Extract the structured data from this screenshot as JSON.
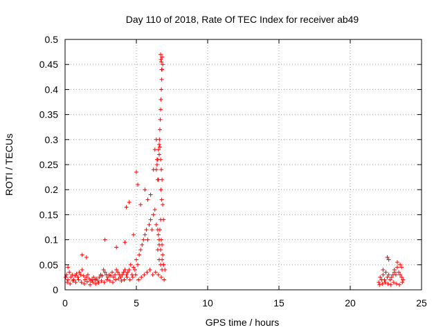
{
  "chart_data": {
    "type": "scatter",
    "title": "Day 110 of 2018, Rate Of TEC Index for receiver ab49",
    "xlabel": "GPS time / hours",
    "ylabel": "ROTI / TECUs",
    "xlim": [
      0,
      25
    ],
    "ylim": [
      0,
      0.5
    ],
    "xticks": [
      "0",
      "5",
      "10",
      "15",
      "20",
      "25"
    ],
    "yticks": [
      "0",
      "0.05",
      "0.1",
      "0.15",
      "0.2",
      "0.25",
      "0.3",
      "0.35",
      "0.4",
      "0.45",
      "0.5"
    ],
    "grid": true,
    "marker": "+",
    "color": "#ff0000",
    "series": [
      {
        "x": [
          0.05,
          0.1,
          0.2,
          0.3,
          0.4,
          0.5,
          0.6,
          0.7,
          0.8,
          0.9,
          1.0,
          1.1,
          1.2,
          1.3,
          1.4,
          1.5,
          1.6,
          1.7,
          1.8,
          1.9,
          2.0,
          2.1,
          2.2,
          2.3,
          2.4,
          2.5,
          2.6,
          2.7,
          2.8,
          2.9,
          3.0,
          3.1,
          3.2,
          3.3,
          3.4,
          3.5,
          3.6,
          3.7,
          3.8,
          3.9,
          4.0,
          4.1,
          4.2,
          4.3,
          4.4,
          4.5,
          4.6,
          4.7,
          4.8,
          4.9,
          5.0,
          5.1,
          5.2,
          5.3,
          5.4,
          5.5,
          5.6,
          5.7,
          5.8,
          5.9,
          6.0,
          6.1,
          6.2,
          6.3,
          6.4,
          6.5,
          6.6,
          6.7,
          6.8,
          6.9,
          7.0,
          0.15,
          0.35,
          0.55,
          0.75,
          0.95,
          1.15,
          1.35,
          1.55,
          1.75,
          1.95,
          2.15,
          2.35,
          2.55,
          2.75,
          2.95,
          3.15,
          3.35,
          3.55,
          3.75,
          3.95,
          4.15,
          4.35,
          4.55,
          4.75,
          4.95,
          5.15,
          5.35,
          5.55,
          5.75,
          5.95,
          6.15,
          6.35,
          6.55,
          6.75,
          6.95,
          0.2,
          1.2,
          1.5,
          2.8,
          3.6,
          4.2,
          4.3,
          4.5,
          4.8,
          5.0,
          5.1,
          5.3,
          5.6,
          5.8,
          6.0,
          6.2,
          6.3,
          6.4,
          6.45,
          6.5,
          6.55,
          6.6,
          6.65,
          6.7,
          6.72,
          6.75,
          6.78,
          6.8,
          6.85,
          6.9,
          6.5,
          6.55,
          6.6,
          6.65,
          6.7,
          6.75,
          6.8,
          6.85,
          6.9,
          6.6,
          6.7,
          6.8,
          22.0,
          22.1,
          22.2,
          22.3,
          22.4,
          22.5,
          22.6,
          22.7,
          22.8,
          22.9,
          23.0,
          23.1,
          23.2,
          23.3,
          23.4,
          23.5,
          23.6,
          23.7,
          22.05,
          22.25,
          22.45,
          22.65,
          22.85,
          23.05,
          23.25,
          23.45,
          23.65,
          22.3,
          22.6,
          22.7,
          23.1,
          23.3,
          23.5,
          23.6
        ],
        "y": [
          0.025,
          0.03,
          0.02,
          0.035,
          0.025,
          0.03,
          0.02,
          0.028,
          0.032,
          0.025,
          0.035,
          0.03,
          0.04,
          0.028,
          0.02,
          0.025,
          0.03,
          0.022,
          0.018,
          0.02,
          0.025,
          0.02,
          0.022,
          0.018,
          0.025,
          0.03,
          0.028,
          0.04,
          0.035,
          0.03,
          0.025,
          0.03,
          0.028,
          0.035,
          0.025,
          0.03,
          0.04,
          0.035,
          0.03,
          0.025,
          0.03,
          0.035,
          0.04,
          0.03,
          0.035,
          0.04,
          0.05,
          0.03,
          0.045,
          0.04,
          0.06,
          0.05,
          0.07,
          0.08,
          0.09,
          0.1,
          0.11,
          0.12,
          0.1,
          0.13,
          0.14,
          0.12,
          0.15,
          0.16,
          0.13,
          0.12,
          0.1,
          0.08,
          0.06,
          0.05,
          0.04,
          0.015,
          0.012,
          0.018,
          0.015,
          0.02,
          0.015,
          0.012,
          0.016,
          0.01,
          0.015,
          0.012,
          0.014,
          0.018,
          0.015,
          0.02,
          0.018,
          0.015,
          0.02,
          0.022,
          0.018,
          0.02,
          0.025,
          0.02,
          0.025,
          0.03,
          0.02,
          0.025,
          0.03,
          0.035,
          0.04,
          0.03,
          0.035,
          0.03,
          0.025,
          0.02,
          0.045,
          0.07,
          0.065,
          0.1,
          0.085,
          0.095,
          0.165,
          0.175,
          0.11,
          0.235,
          0.21,
          0.17,
          0.2,
          0.18,
          0.19,
          0.24,
          0.28,
          0.3,
          0.25,
          0.26,
          0.22,
          0.27,
          0.285,
          0.26,
          0.2,
          0.24,
          0.18,
          0.22,
          0.17,
          0.14,
          0.08,
          0.11,
          0.09,
          0.12,
          0.14,
          0.1,
          0.09,
          0.07,
          0.05,
          0.06,
          0.05,
          0.04,
          0.015,
          0.025,
          0.02,
          0.03,
          0.02,
          0.035,
          0.025,
          0.03,
          0.02,
          0.025,
          0.03,
          0.04,
          0.03,
          0.045,
          0.035,
          0.03,
          0.025,
          0.02,
          0.01,
          0.012,
          0.015,
          0.012,
          0.01,
          0.015,
          0.012,
          0.01,
          0.015,
          0.04,
          0.065,
          0.06,
          0.035,
          0.055,
          0.05,
          0.045
        ]
      },
      {
        "x": [
          6.4,
          6.45,
          6.5,
          6.55,
          6.6,
          6.62,
          6.65,
          6.68,
          6.7,
          6.72,
          6.75,
          6.78,
          6.8,
          6.85
        ],
        "y": [
          0.24,
          0.26,
          0.22,
          0.28,
          0.29,
          0.3,
          0.32,
          0.34,
          0.36,
          0.38,
          0.4,
          0.42,
          0.44,
          0.45
        ]
      },
      {
        "x": [
          6.7,
          6.72,
          6.75,
          6.77,
          6.8
        ],
        "y": [
          0.47,
          0.46,
          0.455,
          0.44,
          0.465
        ]
      }
    ]
  }
}
